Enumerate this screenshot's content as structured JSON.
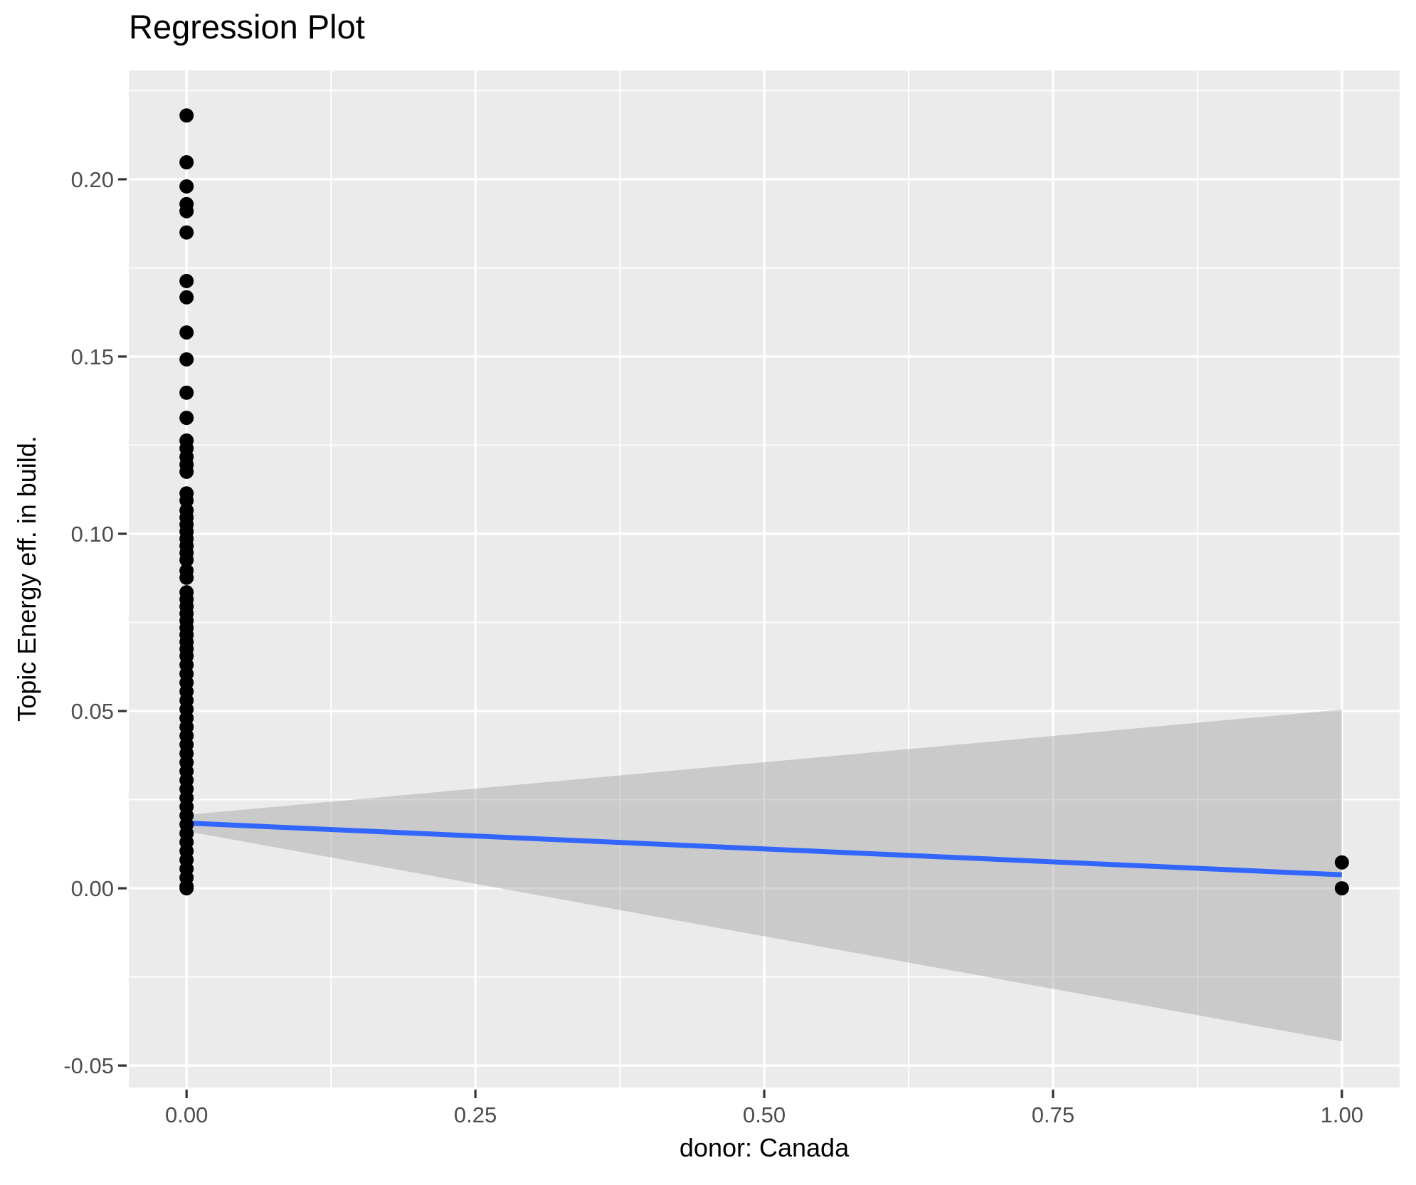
{
  "title": "Regression Plot",
  "chart_data": {
    "type": "scatter",
    "title": "Regression Plot",
    "xlabel": "donor: Canada",
    "ylabel": "Topic Energy eff. in build.",
    "xlim": [
      -0.05,
      1.05
    ],
    "ylim": [
      -0.0562,
      0.2307
    ],
    "grid": true,
    "legend_position": "none",
    "x_ticks": {
      "values": [
        0,
        0.25,
        0.5,
        0.75,
        1
      ],
      "labels": [
        "0.00",
        "0.25",
        "0.50",
        "0.75",
        "1.00"
      ]
    },
    "y_ticks": {
      "values": [
        -0.05,
        0,
        0.05,
        0.1,
        0.15,
        0.2
      ],
      "labels": [
        "-0.05",
        "0.00",
        "0.05",
        "0.10",
        "0.15",
        "0.20"
      ]
    },
    "x_minor": [
      0.125,
      0.375,
      0.625,
      0.875
    ],
    "y_minor": [
      -0.025,
      0.025,
      0.075,
      0.125,
      0.175,
      0.225
    ],
    "series": [
      {
        "name": "observations at donor = 0",
        "kind": "points",
        "x": 0,
        "y": [
          0.218,
          0.2048,
          0.198,
          0.193,
          0.191,
          0.185,
          0.1713,
          0.1667,
          0.1568,
          0.1492,
          0.1398,
          0.1327,
          0.1263,
          0.1241,
          0.1217,
          0.1195,
          0.1175,
          0.1114,
          0.1094,
          0.1066,
          0.1046,
          0.1026,
          0.1006,
          0.0986,
          0.0966,
          0.0946,
          0.0926,
          0.0896,
          0.0876,
          0.0835,
          0.0815,
          0.0795,
          0.0775,
          0.0755,
          0.0735,
          0.0715,
          0.0695,
          0.0675,
          0.0655,
          0.063,
          0.0605,
          0.058,
          0.0555,
          0.053,
          0.0505,
          0.048,
          0.0455,
          0.043,
          0.0405,
          0.038,
          0.0355,
          0.033,
          0.0305,
          0.028,
          0.0255,
          0.023,
          0.0205,
          0.018,
          0.0155,
          0.013,
          0.0105,
          0.008,
          0.0055,
          0.003,
          0.0005,
          0.0
        ]
      },
      {
        "name": "observations at donor = 1",
        "kind": "points",
        "x": 1,
        "y": [
          0.0073,
          0.0
        ]
      },
      {
        "name": "linear fit",
        "kind": "line",
        "points": [
          [
            0,
            0.0184
          ],
          [
            1,
            0.0038
          ]
        ]
      },
      {
        "name": "95% confidence band",
        "kind": "ribbon",
        "upper": [
          [
            0,
            0.0207
          ],
          [
            1,
            0.0504
          ]
        ],
        "lower": [
          [
            0,
            0.0161
          ],
          [
            1,
            -0.0432
          ]
        ]
      }
    ],
    "colors": {
      "point": "#000000",
      "line": "#3366FF",
      "ribbon_fill": "#999999",
      "ribbon_alpha": 0.4,
      "panel_bg": "#EBEBEB",
      "grid": "#FFFFFF",
      "tick_mark": "#333333",
      "tick_label": "#4D4D4D",
      "title_text": "#000000"
    },
    "style": {
      "point_radius": 10,
      "line_width": 7,
      "major_grid_width": 3.2,
      "minor_grid_width": 1.8,
      "tick_length": 12,
      "tick_label_size": 31
    }
  }
}
